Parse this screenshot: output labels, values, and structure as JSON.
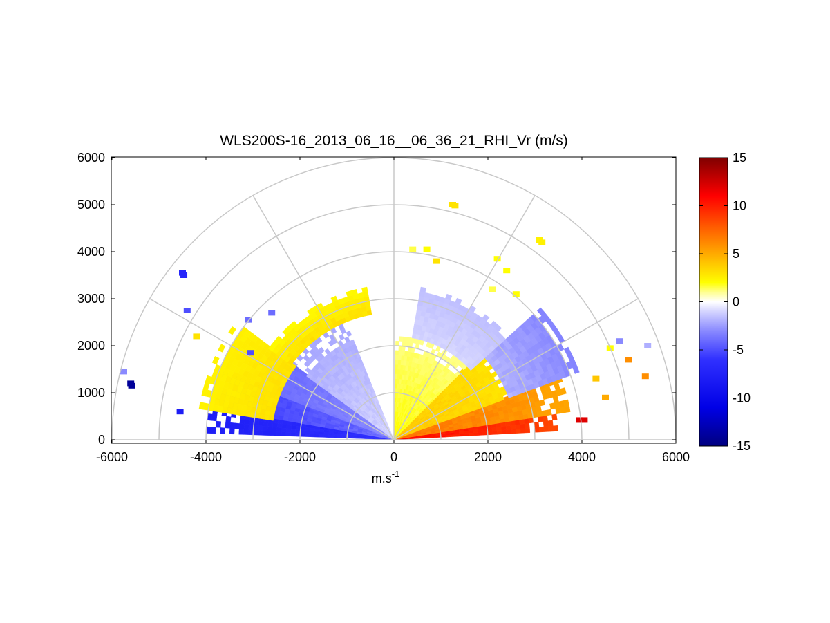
{
  "chart_data": {
    "type": "heatmap",
    "projection": "polar-rhi",
    "title": "WLS200S-16_2013_06_16__06_36_21_RHI_Vr (m/s)",
    "xlabel": "m.s",
    "xlabel_superscript": "-1",
    "xlim": [
      -6000,
      6000
    ],
    "ylim": [
      0,
      6000
    ],
    "x_ticks": [
      "-6000",
      "-4000",
      "-2000",
      "0",
      "2000",
      "4000",
      "6000"
    ],
    "y_ticks": [
      "0",
      "1000",
      "2000",
      "3000",
      "4000",
      "5000",
      "6000"
    ],
    "polar_grid": {
      "range_rings_m": [
        1000,
        2000,
        3000,
        4000,
        5000,
        6000
      ],
      "spoke_angles_deg": [
        0,
        30,
        60,
        90,
        120,
        150,
        180
      ],
      "color": "#c8c8c8"
    },
    "colorbar": {
      "min": -15,
      "max": 15,
      "tick_labels": [
        "15",
        "10",
        "5",
        "0",
        "-5",
        "-10",
        "-15"
      ],
      "stops": [
        {
          "v": -15,
          "color": "#00007f"
        },
        {
          "v": -11,
          "color": "#0000e6"
        },
        {
          "v": -6,
          "color": "#3030ff"
        },
        {
          "v": -3,
          "color": "#8a8aff"
        },
        {
          "v": -1,
          "color": "#d4d4ff"
        },
        {
          "v": 0,
          "color": "#ffffff"
        },
        {
          "v": 1,
          "color": "#ffff90"
        },
        {
          "v": 2,
          "color": "#ffff00"
        },
        {
          "v": 5,
          "color": "#ffaa00"
        },
        {
          "v": 8,
          "color": "#ff5500"
        },
        {
          "v": 11,
          "color": "#ff0000"
        },
        {
          "v": 15,
          "color": "#7f0000"
        }
      ]
    },
    "regions": [
      {
        "name": "approaching-core-left",
        "az_deg": [
          170,
          178
        ],
        "range_m": [
          0,
          4000
        ],
        "v": [
          -9,
          -6
        ]
      },
      {
        "name": "approaching-mid-left",
        "az_deg": [
          158,
          170
        ],
        "range_m": [
          0,
          3900
        ],
        "v": [
          -7,
          -4
        ]
      },
      {
        "name": "approaching-upper-left",
        "az_deg": [
          143,
          158
        ],
        "range_m": [
          0,
          3200
        ],
        "v": [
          -5,
          -3
        ]
      },
      {
        "name": "approaching-near-vertical-left",
        "az_deg": [
          112,
          143
        ],
        "range_m": [
          0,
          2700
        ],
        "v": [
          -3,
          -1
        ]
      },
      {
        "name": "receding-upper-left",
        "az_deg": [
          143,
          170
        ],
        "range_m": [
          2600,
          4200
        ],
        "v": [
          2,
          3
        ]
      },
      {
        "name": "receding-near-vertical-left",
        "az_deg": [
          100,
          143
        ],
        "range_m": [
          2700,
          3300
        ],
        "v": [
          1.5,
          3
        ]
      },
      {
        "name": "receding-core-right",
        "az_deg": [
          3,
          9
        ],
        "range_m": [
          0,
          3500
        ],
        "v": [
          7,
          11
        ]
      },
      {
        "name": "receding-mid-right",
        "az_deg": [
          9,
          20
        ],
        "range_m": [
          0,
          3800
        ],
        "v": [
          4,
          7
        ]
      },
      {
        "name": "receding-upper-right",
        "az_deg": [
          20,
          45
        ],
        "range_m": [
          0,
          3000
        ],
        "v": [
          2,
          4
        ]
      },
      {
        "name": "receding-near-vertical-right",
        "az_deg": [
          45,
          88
        ],
        "range_m": [
          0,
          2200
        ],
        "v": [
          0.5,
          2
        ]
      },
      {
        "name": "approaching-upper-right",
        "az_deg": [
          20,
          42
        ],
        "range_m": [
          2600,
          4200
        ],
        "v": [
          -4,
          -2
        ]
      },
      {
        "name": "approaching-near-vertical-right",
        "az_deg": [
          42,
          80
        ],
        "range_m": [
          2200,
          3300
        ],
        "v": [
          -2,
          -1
        ]
      }
    ],
    "isolated_points": [
      {
        "x": -4500,
        "y": 3550,
        "v": -7
      },
      {
        "x": -4470,
        "y": 3500,
        "v": -7
      },
      {
        "x": -4400,
        "y": 2750,
        "v": -5
      },
      {
        "x": -3050,
        "y": 1850,
        "v": -5
      },
      {
        "x": -5600,
        "y": 1200,
        "v": -14
      },
      {
        "x": -5580,
        "y": 1150,
        "v": -14
      },
      {
        "x": -5750,
        "y": 1450,
        "v": -3
      },
      {
        "x": -4550,
        "y": 600,
        "v": -8
      },
      {
        "x": -3100,
        "y": 2550,
        "v": -4
      },
      {
        "x": -2600,
        "y": 2700,
        "v": -4
      },
      {
        "x": -4200,
        "y": 2200,
        "v": 3
      },
      {
        "x": 1250,
        "y": 5000,
        "v": 3
      },
      {
        "x": 1300,
        "y": 4980,
        "v": 3
      },
      {
        "x": 3100,
        "y": 4250,
        "v": 2.5
      },
      {
        "x": 3150,
        "y": 4200,
        "v": 2.5
      },
      {
        "x": 400,
        "y": 4050,
        "v": 1.5
      },
      {
        "x": 700,
        "y": 4050,
        "v": 2
      },
      {
        "x": 900,
        "y": 3800,
        "v": 3
      },
      {
        "x": 2200,
        "y": 3850,
        "v": 2
      },
      {
        "x": 2400,
        "y": 3600,
        "v": 2
      },
      {
        "x": 2600,
        "y": 3100,
        "v": 2
      },
      {
        "x": 2100,
        "y": 3200,
        "v": 1.5
      },
      {
        "x": 5350,
        "y": 1350,
        "v": 6
      },
      {
        "x": 3950,
        "y": 420,
        "v": 12
      },
      {
        "x": 4050,
        "y": 420,
        "v": 12
      },
      {
        "x": 4300,
        "y": 1300,
        "v": 4
      },
      {
        "x": 4500,
        "y": 900,
        "v": 5
      },
      {
        "x": 5000,
        "y": 1700,
        "v": 6
      },
      {
        "x": 5400,
        "y": 2000,
        "v": -2
      },
      {
        "x": 4800,
        "y": 2100,
        "v": -3
      },
      {
        "x": 4600,
        "y": 1950,
        "v": 2
      }
    ]
  }
}
